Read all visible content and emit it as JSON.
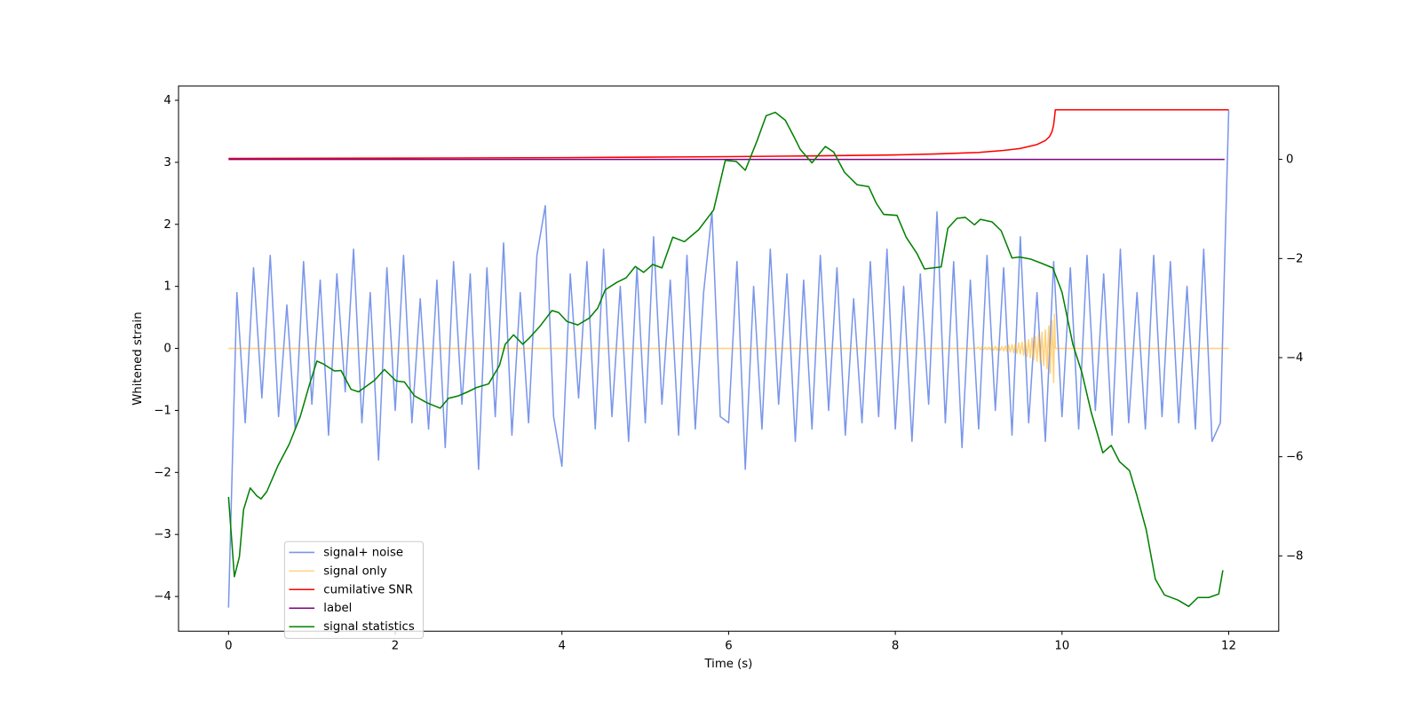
{
  "chart_data": {
    "type": "line",
    "xlabel": "Time (s)",
    "ylabel": "Whitened strain",
    "xlim": [
      -0.6,
      12.6
    ],
    "xticks": [
      0,
      2,
      4,
      6,
      8,
      10,
      12
    ],
    "ylim": [
      -4.56,
      4.23
    ],
    "yticks": [
      {
        "value": -4,
        "label": "−4"
      },
      {
        "value": -3,
        "label": "−3"
      },
      {
        "value": -2,
        "label": "−2"
      },
      {
        "value": -1,
        "label": "−1"
      },
      0,
      1,
      2,
      3,
      4
    ],
    "y2lim": [
      -9.52,
      1.48
    ],
    "y2ticks": [
      {
        "value": -8,
        "label": "−8"
      },
      {
        "value": -6,
        "label": "−6"
      },
      {
        "value": -4,
        "label": "−4"
      },
      {
        "value": -2,
        "label": "−2"
      },
      0
    ],
    "x": [
      0,
      0.1,
      0.2,
      0.3,
      0.4,
      0.5,
      0.6,
      0.7,
      0.8,
      0.9,
      1,
      1.1,
      1.2,
      1.3,
      1.4,
      1.5,
      1.6,
      1.7,
      1.8,
      1.9,
      2,
      2.1,
      2.2,
      2.3,
      2.4,
      2.5,
      2.6,
      2.7,
      2.8,
      2.9,
      3,
      3.1,
      3.2,
      3.3,
      3.4,
      3.5,
      3.6,
      3.7,
      3.8,
      3.9,
      4,
      4.1,
      4.2,
      4.3,
      4.4,
      4.5,
      4.6,
      4.7,
      4.8,
      4.9,
      5,
      5.1,
      5.2,
      5.3,
      5.4,
      5.5,
      5.6,
      5.7,
      5.8,
      5.9,
      6,
      6.1,
      6.2,
      6.3,
      6.4,
      6.5,
      6.6,
      6.7,
      6.8,
      6.9,
      7,
      7.1,
      7.2,
      7.3,
      7.4,
      7.5,
      7.6,
      7.7,
      7.8,
      7.9,
      8,
      8.1,
      8.2,
      8.3,
      8.4,
      8.5,
      8.6,
      8.7,
      8.8,
      8.9,
      9,
      9.1,
      9.2,
      9.3,
      9.4,
      9.5,
      9.6,
      9.7,
      9.8,
      9.9,
      10,
      10.1,
      10.2,
      10.3,
      10.4,
      10.5,
      10.6,
      10.7,
      10.8,
      10.9,
      11,
      11.1,
      11.2,
      11.3,
      11.4,
      11.5,
      11.6,
      11.7,
      11.8,
      11.9,
      12
    ],
    "series": [
      {
        "name": "signal+ noise",
        "color": "#4169e1",
        "alpha": 0.7,
        "values": [
          -4.18,
          0.9,
          -1.2,
          1.3,
          -0.8,
          1.5,
          -1.1,
          0.7,
          -1.3,
          1.4,
          -0.9,
          1.1,
          -1.4,
          1.2,
          -0.7,
          1.6,
          -1.2,
          0.9,
          -1.8,
          1.3,
          -1.0,
          1.5,
          -1.2,
          0.8,
          -1.3,
          1.1,
          -1.6,
          1.4,
          -0.9,
          1.2,
          -1.95,
          1.3,
          -1.1,
          1.7,
          -1.4,
          0.9,
          -1.2,
          1.5,
          2.3,
          -1.1,
          -1.9,
          1.2,
          -0.8,
          1.4,
          -1.3,
          1.6,
          -1.1,
          1.0,
          -1.5,
          1.3,
          -1.2,
          1.8,
          -0.9,
          1.1,
          -1.4,
          1.5,
          -1.3,
          0.9,
          2.2,
          -1.1,
          -1.2,
          1.4,
          -1.95,
          1.0,
          -1.3,
          1.6,
          -0.9,
          1.2,
          -1.5,
          1.1,
          -1.3,
          1.5,
          -1.0,
          1.3,
          -1.4,
          0.8,
          -1.2,
          1.4,
          -1.1,
          1.6,
          -1.3,
          1.0,
          -1.5,
          1.2,
          -0.9,
          2.2,
          -1.2,
          1.4,
          -1.6,
          1.1,
          -1.3,
          1.5,
          -1.0,
          1.3,
          -1.4,
          1.8,
          -1.2,
          0.9,
          -1.5,
          1.4,
          -1.1,
          1.3,
          -1.3,
          1.5,
          -1.0,
          1.2,
          -1.4,
          1.6,
          -1.2,
          0.9,
          -1.3,
          1.5,
          -1.1,
          1.4,
          -1.2,
          1.0,
          -1.3,
          1.6,
          -1.5,
          -1.2,
          3.84
        ]
      },
      {
        "name": "signal only",
        "color": "#ffa500",
        "alpha": 0.5,
        "x": [
          0,
          8.98,
          9.0,
          9.02,
          9.04,
          9.06,
          9.08,
          9.1,
          9.12,
          9.14,
          9.16,
          9.18,
          9.2,
          9.22,
          9.24,
          9.26,
          9.28,
          9.3,
          9.32,
          9.34,
          9.36,
          9.38,
          9.4,
          9.42,
          9.44,
          9.46,
          9.48,
          9.5,
          9.52,
          9.54,
          9.56,
          9.58,
          9.6,
          9.62,
          9.64,
          9.66,
          9.68,
          9.7,
          9.72,
          9.74,
          9.76,
          9.78,
          9.8,
          9.82,
          9.84,
          9.86,
          9.88,
          9.9,
          9.91,
          9.92,
          12
        ],
        "values": [
          0,
          0,
          0.02,
          -0.02,
          0.02,
          -0.02,
          0.02,
          -0.02,
          0.02,
          -0.02,
          0.03,
          -0.03,
          0.03,
          -0.03,
          0.03,
          -0.03,
          0.03,
          -0.04,
          0.04,
          -0.05,
          0.05,
          -0.06,
          0.06,
          -0.07,
          0.07,
          -0.08,
          0.09,
          -0.09,
          0.1,
          -0.11,
          0.12,
          -0.13,
          0.14,
          -0.15,
          0.17,
          -0.18,
          0.19,
          -0.21,
          0.23,
          -0.24,
          0.26,
          -0.28,
          0.3,
          -0.33,
          0.36,
          -0.4,
          0.45,
          -0.55,
          0.55,
          0,
          0
        ]
      },
      {
        "name": "cumilative SNR",
        "color": "#ff0000",
        "axis": "y2",
        "x": [
          0,
          2,
          4,
          5,
          6,
          7,
          8,
          8.5,
          9,
          9.3,
          9.5,
          9.7,
          9.8,
          9.85,
          9.88,
          9.9,
          9.92,
          12
        ],
        "values": [
          0.02,
          0.025,
          0.035,
          0.045,
          0.055,
          0.07,
          0.09,
          0.11,
          0.14,
          0.18,
          0.22,
          0.3,
          0.38,
          0.46,
          0.56,
          0.7,
          1.0,
          1.0
        ]
      },
      {
        "name": "label",
        "color": "#800080",
        "axis": "y2",
        "x": [
          0,
          11.95
        ],
        "values": [
          0,
          0
        ]
      },
      {
        "name": "signal statistics",
        "color": "#008000",
        "axis": "y2",
        "x": [
          0,
          0.07,
          0.13,
          0.18,
          0.26,
          0.34,
          0.39,
          0.46,
          0.59,
          0.73,
          0.86,
          0.97,
          1.06,
          1.14,
          1.27,
          1.35,
          1.47,
          1.56,
          1.65,
          1.75,
          1.87,
          2.01,
          2.11,
          2.23,
          2.38,
          2.54,
          2.64,
          2.76,
          2.87,
          2.98,
          3.12,
          3.25,
          3.32,
          3.42,
          3.53,
          3.6,
          3.74,
          3.88,
          3.96,
          4.06,
          4.19,
          4.33,
          4.43,
          4.52,
          4.66,
          4.77,
          4.88,
          4.98,
          5.09,
          5.2,
          5.33,
          5.47,
          5.64,
          5.82,
          5.96,
          6.09,
          6.2,
          6.34,
          6.45,
          6.56,
          6.68,
          6.78,
          6.86,
          7.0,
          7.16,
          7.26,
          7.39,
          7.54,
          7.68,
          7.77,
          7.86,
          8.02,
          8.13,
          8.26,
          8.35,
          8.55,
          8.63,
          8.74,
          8.84,
          8.95,
          9.02,
          9.16,
          9.27,
          9.4,
          9.49,
          9.62,
          9.76,
          9.89,
          10.0,
          10.13,
          10.24,
          10.35,
          10.49,
          10.59,
          10.69,
          10.81,
          10.9,
          11.01,
          11.12,
          11.23,
          11.39,
          11.52,
          11.63,
          11.76,
          11.88,
          11.93
        ],
        "values": [
          -6.81,
          -8.42,
          -8.02,
          -7.07,
          -6.63,
          -6.79,
          -6.85,
          -6.7,
          -6.19,
          -5.74,
          -5.19,
          -4.55,
          -4.07,
          -4.13,
          -4.27,
          -4.26,
          -4.64,
          -4.69,
          -4.58,
          -4.46,
          -4.24,
          -4.47,
          -4.49,
          -4.77,
          -4.91,
          -5.02,
          -4.82,
          -4.77,
          -4.69,
          -4.6,
          -4.53,
          -4.16,
          -3.73,
          -3.54,
          -3.73,
          -3.62,
          -3.36,
          -3.05,
          -3.09,
          -3.27,
          -3.34,
          -3.2,
          -3.0,
          -2.63,
          -2.48,
          -2.39,
          -2.16,
          -2.28,
          -2.12,
          -2.19,
          -1.57,
          -1.66,
          -1.42,
          -1.02,
          -0.02,
          -0.04,
          -0.22,
          0.37,
          0.88,
          0.95,
          0.79,
          0.47,
          0.2,
          -0.07,
          0.26,
          0.15,
          -0.26,
          -0.51,
          -0.55,
          -0.88,
          -1.11,
          -1.13,
          -1.57,
          -1.9,
          -2.21,
          -2.17,
          -1.39,
          -1.19,
          -1.17,
          -1.32,
          -1.21,
          -1.26,
          -1.44,
          -1.99,
          -1.97,
          -2.01,
          -2.1,
          -2.19,
          -2.68,
          -3.73,
          -4.31,
          -5.1,
          -5.92,
          -5.77,
          -6.1,
          -6.28,
          -6.79,
          -7.47,
          -8.47,
          -8.79,
          -8.89,
          -9.02,
          -8.84,
          -8.84,
          -8.77,
          -8.29
        ]
      }
    ]
  }
}
